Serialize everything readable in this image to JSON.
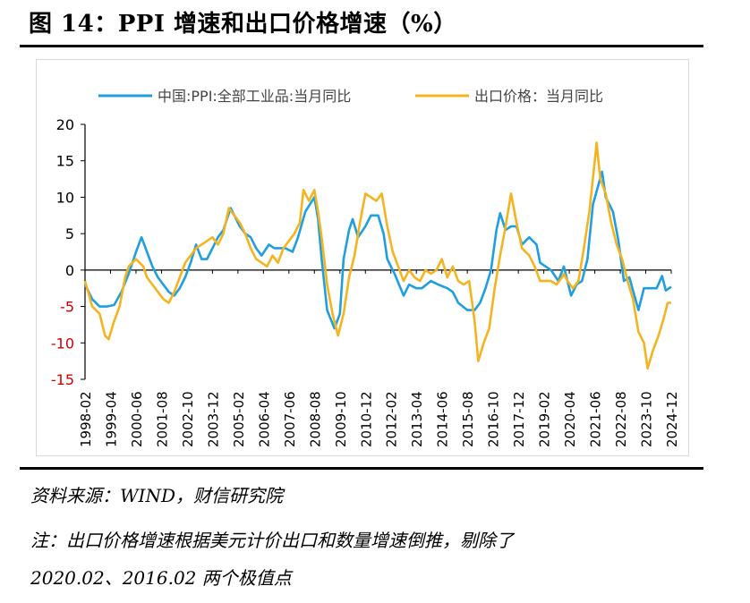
{
  "header": {
    "title": "图 14：PPI 增速和出口价格增速（%）"
  },
  "chart_data": {
    "type": "line",
    "title": "",
    "xlabel": "",
    "ylabel": "",
    "ylim": [
      -15,
      20
    ],
    "yticks": [
      20,
      15,
      10,
      5,
      0,
      -5,
      -10,
      -15
    ],
    "xtick_labels": [
      "1998-02",
      "1999-04",
      "2000-06",
      "2001-08",
      "2002-10",
      "2003-12",
      "2005-02",
      "2006-04",
      "2007-06",
      "2008-08",
      "2009-10",
      "2010-12",
      "2012-02",
      "2013-04",
      "2014-06",
      "2015-08",
      "2016-10",
      "2017-12",
      "2019-02",
      "2020-04",
      "2021-06",
      "2022-08",
      "2023-10",
      "2024-12"
    ],
    "x_start": "1998-02",
    "x_end": "2024-12",
    "legend_position": "top",
    "grid": false,
    "series": [
      {
        "name": "中国:PPI:全部工业品:当月同比",
        "color": "#1f9fe0",
        "points": [
          [
            "1998-02",
            -2.0
          ],
          [
            "1998-06",
            -4.0
          ],
          [
            "1998-10",
            -5.0
          ],
          [
            "1999-02",
            -5.0
          ],
          [
            "1999-06",
            -4.8
          ],
          [
            "1999-10",
            -3.0
          ],
          [
            "2000-02",
            -0.5
          ],
          [
            "2000-06",
            2.5
          ],
          [
            "2000-09",
            4.5
          ],
          [
            "2000-12",
            2.5
          ],
          [
            "2001-03",
            0.5
          ],
          [
            "2001-06",
            -1.0
          ],
          [
            "2001-09",
            -2.0
          ],
          [
            "2001-12",
            -3.0
          ],
          [
            "2002-03",
            -3.5
          ],
          [
            "2002-06",
            -2.5
          ],
          [
            "2002-09",
            -1.0
          ],
          [
            "2002-12",
            1.0
          ],
          [
            "2003-03",
            3.5
          ],
          [
            "2003-06",
            1.5
          ],
          [
            "2003-09",
            1.5
          ],
          [
            "2003-12",
            3.0
          ],
          [
            "2004-03",
            4.5
          ],
          [
            "2004-06",
            5.5
          ],
          [
            "2004-10",
            8.5
          ],
          [
            "2005-03",
            6.0
          ],
          [
            "2005-06",
            5.0
          ],
          [
            "2005-09",
            4.5
          ],
          [
            "2005-12",
            3.0
          ],
          [
            "2006-03",
            2.0
          ],
          [
            "2006-07",
            3.5
          ],
          [
            "2006-10",
            3.0
          ],
          [
            "2007-01",
            3.0
          ],
          [
            "2007-04",
            3.0
          ],
          [
            "2007-08",
            2.5
          ],
          [
            "2007-11",
            4.5
          ],
          [
            "2008-03",
            8.0
          ],
          [
            "2008-08",
            10.0
          ],
          [
            "2008-10",
            7.0
          ],
          [
            "2008-12",
            1.5
          ],
          [
            "2009-03",
            -5.5
          ],
          [
            "2009-07",
            -8.0
          ],
          [
            "2009-10",
            -6.0
          ],
          [
            "2009-12",
            1.5
          ],
          [
            "2010-03",
            5.5
          ],
          [
            "2010-05",
            7.0
          ],
          [
            "2010-08",
            4.5
          ],
          [
            "2010-12",
            6.0
          ],
          [
            "2011-03",
            7.5
          ],
          [
            "2011-07",
            7.5
          ],
          [
            "2011-10",
            5.0
          ],
          [
            "2011-12",
            1.5
          ],
          [
            "2012-04",
            -0.5
          ],
          [
            "2012-09",
            -3.5
          ],
          [
            "2012-12",
            -2.0
          ],
          [
            "2013-04",
            -2.5
          ],
          [
            "2013-07",
            -2.5
          ],
          [
            "2013-12",
            -1.5
          ],
          [
            "2014-04",
            -2.0
          ],
          [
            "2014-09",
            -2.5
          ],
          [
            "2014-12",
            -3.0
          ],
          [
            "2015-03",
            -4.5
          ],
          [
            "2015-08",
            -5.5
          ],
          [
            "2015-12",
            -5.5
          ],
          [
            "2016-03",
            -4.5
          ],
          [
            "2016-06",
            -2.5
          ],
          [
            "2016-09",
            0.0
          ],
          [
            "2016-12",
            5.5
          ],
          [
            "2017-02",
            7.8
          ],
          [
            "2017-05",
            5.5
          ],
          [
            "2017-08",
            6.0
          ],
          [
            "2017-11",
            6.0
          ],
          [
            "2018-02",
            3.5
          ],
          [
            "2018-06",
            4.5
          ],
          [
            "2018-10",
            3.5
          ],
          [
            "2018-12",
            1.0
          ],
          [
            "2019-03",
            0.5
          ],
          [
            "2019-06",
            0.0
          ],
          [
            "2019-10",
            -1.5
          ],
          [
            "2020-01",
            0.5
          ],
          [
            "2020-05",
            -3.5
          ],
          [
            "2020-08",
            -2.0
          ],
          [
            "2020-11",
            -1.5
          ],
          [
            "2021-02",
            1.5
          ],
          [
            "2021-05",
            9.0
          ],
          [
            "2021-10",
            13.5
          ],
          [
            "2021-12",
            10.0
          ],
          [
            "2022-04",
            8.0
          ],
          [
            "2022-07",
            4.0
          ],
          [
            "2022-10",
            -1.5
          ],
          [
            "2023-01",
            -1.0
          ],
          [
            "2023-06",
            -5.5
          ],
          [
            "2023-09",
            -2.5
          ],
          [
            "2023-12",
            -2.5
          ],
          [
            "2024-04",
            -2.5
          ],
          [
            "2024-07",
            -0.8
          ],
          [
            "2024-09",
            -2.8
          ],
          [
            "2024-12",
            -2.3
          ]
        ]
      },
      {
        "name": "出口价格：当月同比",
        "color": "#f5b41f",
        "points": [
          [
            "1998-02",
            -1.5
          ],
          [
            "1998-06",
            -5.0
          ],
          [
            "1998-10",
            -6.0
          ],
          [
            "1999-01",
            -9.0
          ],
          [
            "1999-03",
            -9.5
          ],
          [
            "1999-06",
            -7.0
          ],
          [
            "1999-09",
            -5.0
          ],
          [
            "1999-12",
            -1.0
          ],
          [
            "2000-02",
            0.5
          ],
          [
            "2000-06",
            1.5
          ],
          [
            "2000-10",
            0.5
          ],
          [
            "2000-12",
            -1.0
          ],
          [
            "2001-03",
            -2.0
          ],
          [
            "2001-06",
            -3.0
          ],
          [
            "2001-09",
            -4.0
          ],
          [
            "2001-12",
            -4.5
          ],
          [
            "2002-03",
            -3.0
          ],
          [
            "2002-06",
            -1.0
          ],
          [
            "2002-09",
            1.0
          ],
          [
            "2002-12",
            2.0
          ],
          [
            "2003-03",
            3.0
          ],
          [
            "2003-06",
            3.5
          ],
          [
            "2003-09",
            4.0
          ],
          [
            "2003-12",
            4.5
          ],
          [
            "2004-03",
            3.5
          ],
          [
            "2004-06",
            5.0
          ],
          [
            "2004-09",
            8.5
          ],
          [
            "2004-12",
            7.5
          ],
          [
            "2005-03",
            6.5
          ],
          [
            "2005-06",
            5.0
          ],
          [
            "2005-09",
            3.0
          ],
          [
            "2005-12",
            1.5
          ],
          [
            "2006-03",
            1.0
          ],
          [
            "2006-06",
            0.5
          ],
          [
            "2006-09",
            2.0
          ],
          [
            "2006-12",
            1.0
          ],
          [
            "2007-03",
            3.0
          ],
          [
            "2007-06",
            4.0
          ],
          [
            "2007-09",
            5.0
          ],
          [
            "2007-12",
            6.5
          ],
          [
            "2008-02",
            11.0
          ],
          [
            "2008-05",
            9.5
          ],
          [
            "2008-08",
            11.0
          ],
          [
            "2008-10",
            8.0
          ],
          [
            "2008-12",
            4.5
          ],
          [
            "2009-03",
            -2.0
          ],
          [
            "2009-06",
            -6.0
          ],
          [
            "2009-09",
            -9.0
          ],
          [
            "2009-12",
            -6.0
          ],
          [
            "2010-03",
            -1.0
          ],
          [
            "2010-06",
            2.0
          ],
          [
            "2010-09",
            6.5
          ],
          [
            "2010-12",
            10.5
          ],
          [
            "2011-03",
            10.0
          ],
          [
            "2011-06",
            9.5
          ],
          [
            "2011-09",
            10.5
          ],
          [
            "2011-12",
            6.0
          ],
          [
            "2012-03",
            2.5
          ],
          [
            "2012-06",
            0.5
          ],
          [
            "2012-09",
            -1.5
          ],
          [
            "2012-12",
            0.0
          ],
          [
            "2013-03",
            -1.0
          ],
          [
            "2013-06",
            -1.5
          ],
          [
            "2013-09",
            0.0
          ],
          [
            "2013-12",
            -0.5
          ],
          [
            "2014-03",
            0.0
          ],
          [
            "2014-06",
            1.5
          ],
          [
            "2014-09",
            -1.0
          ],
          [
            "2014-12",
            0.5
          ],
          [
            "2015-03",
            -1.5
          ],
          [
            "2015-06",
            -2.0
          ],
          [
            "2015-09",
            -1.5
          ],
          [
            "2015-12",
            -7.0
          ],
          [
            "2016-02",
            -12.5
          ],
          [
            "2016-05",
            -10.0
          ],
          [
            "2016-08",
            -8.0
          ],
          [
            "2016-11",
            -2.5
          ],
          [
            "2017-02",
            2.0
          ],
          [
            "2017-05",
            6.0
          ],
          [
            "2017-08",
            10.5
          ],
          [
            "2017-11",
            6.5
          ],
          [
            "2018-02",
            3.0
          ],
          [
            "2018-06",
            2.0
          ],
          [
            "2018-09",
            0.5
          ],
          [
            "2018-12",
            -1.5
          ],
          [
            "2019-03",
            -1.5
          ],
          [
            "2019-06",
            -1.5
          ],
          [
            "2019-09",
            -2.0
          ],
          [
            "2019-12",
            -1.0
          ],
          [
            "2020-01",
            -0.5
          ],
          [
            "2020-03",
            -1.5
          ],
          [
            "2020-06",
            -2.5
          ],
          [
            "2020-09",
            -1.5
          ],
          [
            "2020-12",
            3.0
          ],
          [
            "2021-03",
            8.0
          ],
          [
            "2021-06",
            15.0
          ],
          [
            "2021-07",
            17.5
          ],
          [
            "2021-09",
            12.5
          ],
          [
            "2021-12",
            10.5
          ],
          [
            "2022-03",
            6.5
          ],
          [
            "2022-06",
            3.5
          ],
          [
            "2022-09",
            1.5
          ],
          [
            "2022-12",
            -1.5
          ],
          [
            "2023-03",
            -4.0
          ],
          [
            "2023-06",
            -8.5
          ],
          [
            "2023-09",
            -10.0
          ],
          [
            "2023-11",
            -13.5
          ],
          [
            "2024-02",
            -11.0
          ],
          [
            "2024-05",
            -9.0
          ],
          [
            "2024-08",
            -6.5
          ],
          [
            "2024-10",
            -4.5
          ],
          [
            "2024-12",
            -4.5
          ]
        ]
      }
    ]
  },
  "notes": {
    "source": "资料来源：WIND，财信研究院",
    "note_line1": "注：出口价格增速根据美元计价出口和数量增速倒推，剔除了",
    "note_line2": "2020.02、2016.02 两个极值点"
  }
}
